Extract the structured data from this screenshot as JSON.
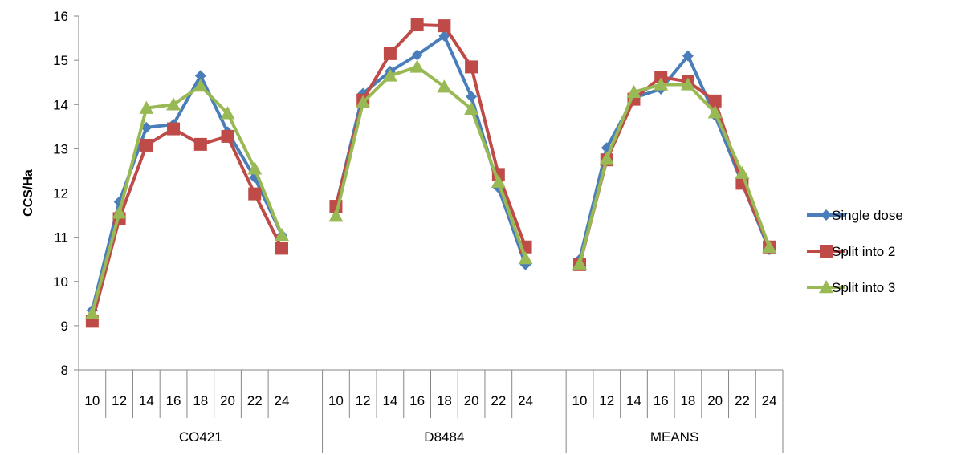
{
  "chart_data": {
    "type": "line",
    "title": "",
    "xlabel": "",
    "ylabel": "CCS/Ha",
    "ylim": [
      8,
      16
    ],
    "yticks": [
      8,
      9,
      10,
      11,
      12,
      13,
      14,
      15,
      16
    ],
    "grid": false,
    "legend_position": "right",
    "groups": [
      {
        "label": "CO421",
        "categories": [
          "10",
          "12",
          "14",
          "16",
          "18",
          "20",
          "22",
          "24"
        ]
      },
      {
        "label": "D8484",
        "categories": [
          "10",
          "12",
          "14",
          "16",
          "18",
          "20",
          "22",
          "24"
        ]
      },
      {
        "label": "MEANS",
        "categories": [
          "10",
          "12",
          "14",
          "16",
          "18",
          "20",
          "22",
          "24"
        ]
      }
    ],
    "series": [
      {
        "name": "Single dose",
        "color": "#4a7ebb",
        "marker": "diamond",
        "values": [
          [
            9.35,
            11.8,
            13.48,
            13.55,
            14.65,
            13.38,
            12.35,
            11.05
          ],
          [
            11.7,
            14.25,
            14.75,
            15.12,
            15.55,
            14.18,
            12.12,
            10.38
          ],
          [
            10.5,
            13.02,
            14.15,
            14.35,
            15.1,
            13.75,
            12.22,
            10.72
          ]
        ]
      },
      {
        "name": "Split into 2",
        "color": "#be4b48",
        "marker": "square",
        "values": [
          [
            9.1,
            11.42,
            13.08,
            13.45,
            13.1,
            13.28,
            11.98,
            10.75
          ],
          [
            11.7,
            14.1,
            15.15,
            15.8,
            15.78,
            14.85,
            12.42,
            10.78
          ],
          [
            10.38,
            12.75,
            14.12,
            14.62,
            14.52,
            14.08,
            12.22,
            10.78
          ]
        ]
      },
      {
        "name": "Split into 3",
        "color": "#98b954",
        "marker": "triangle",
        "values": [
          [
            9.28,
            11.55,
            13.92,
            14.0,
            14.42,
            13.8,
            12.55,
            11.05
          ],
          [
            11.48,
            14.05,
            14.65,
            14.85,
            14.4,
            13.9,
            12.25,
            10.52
          ],
          [
            10.4,
            12.78,
            14.28,
            14.45,
            14.45,
            13.82,
            12.45,
            10.78
          ]
        ]
      }
    ]
  }
}
